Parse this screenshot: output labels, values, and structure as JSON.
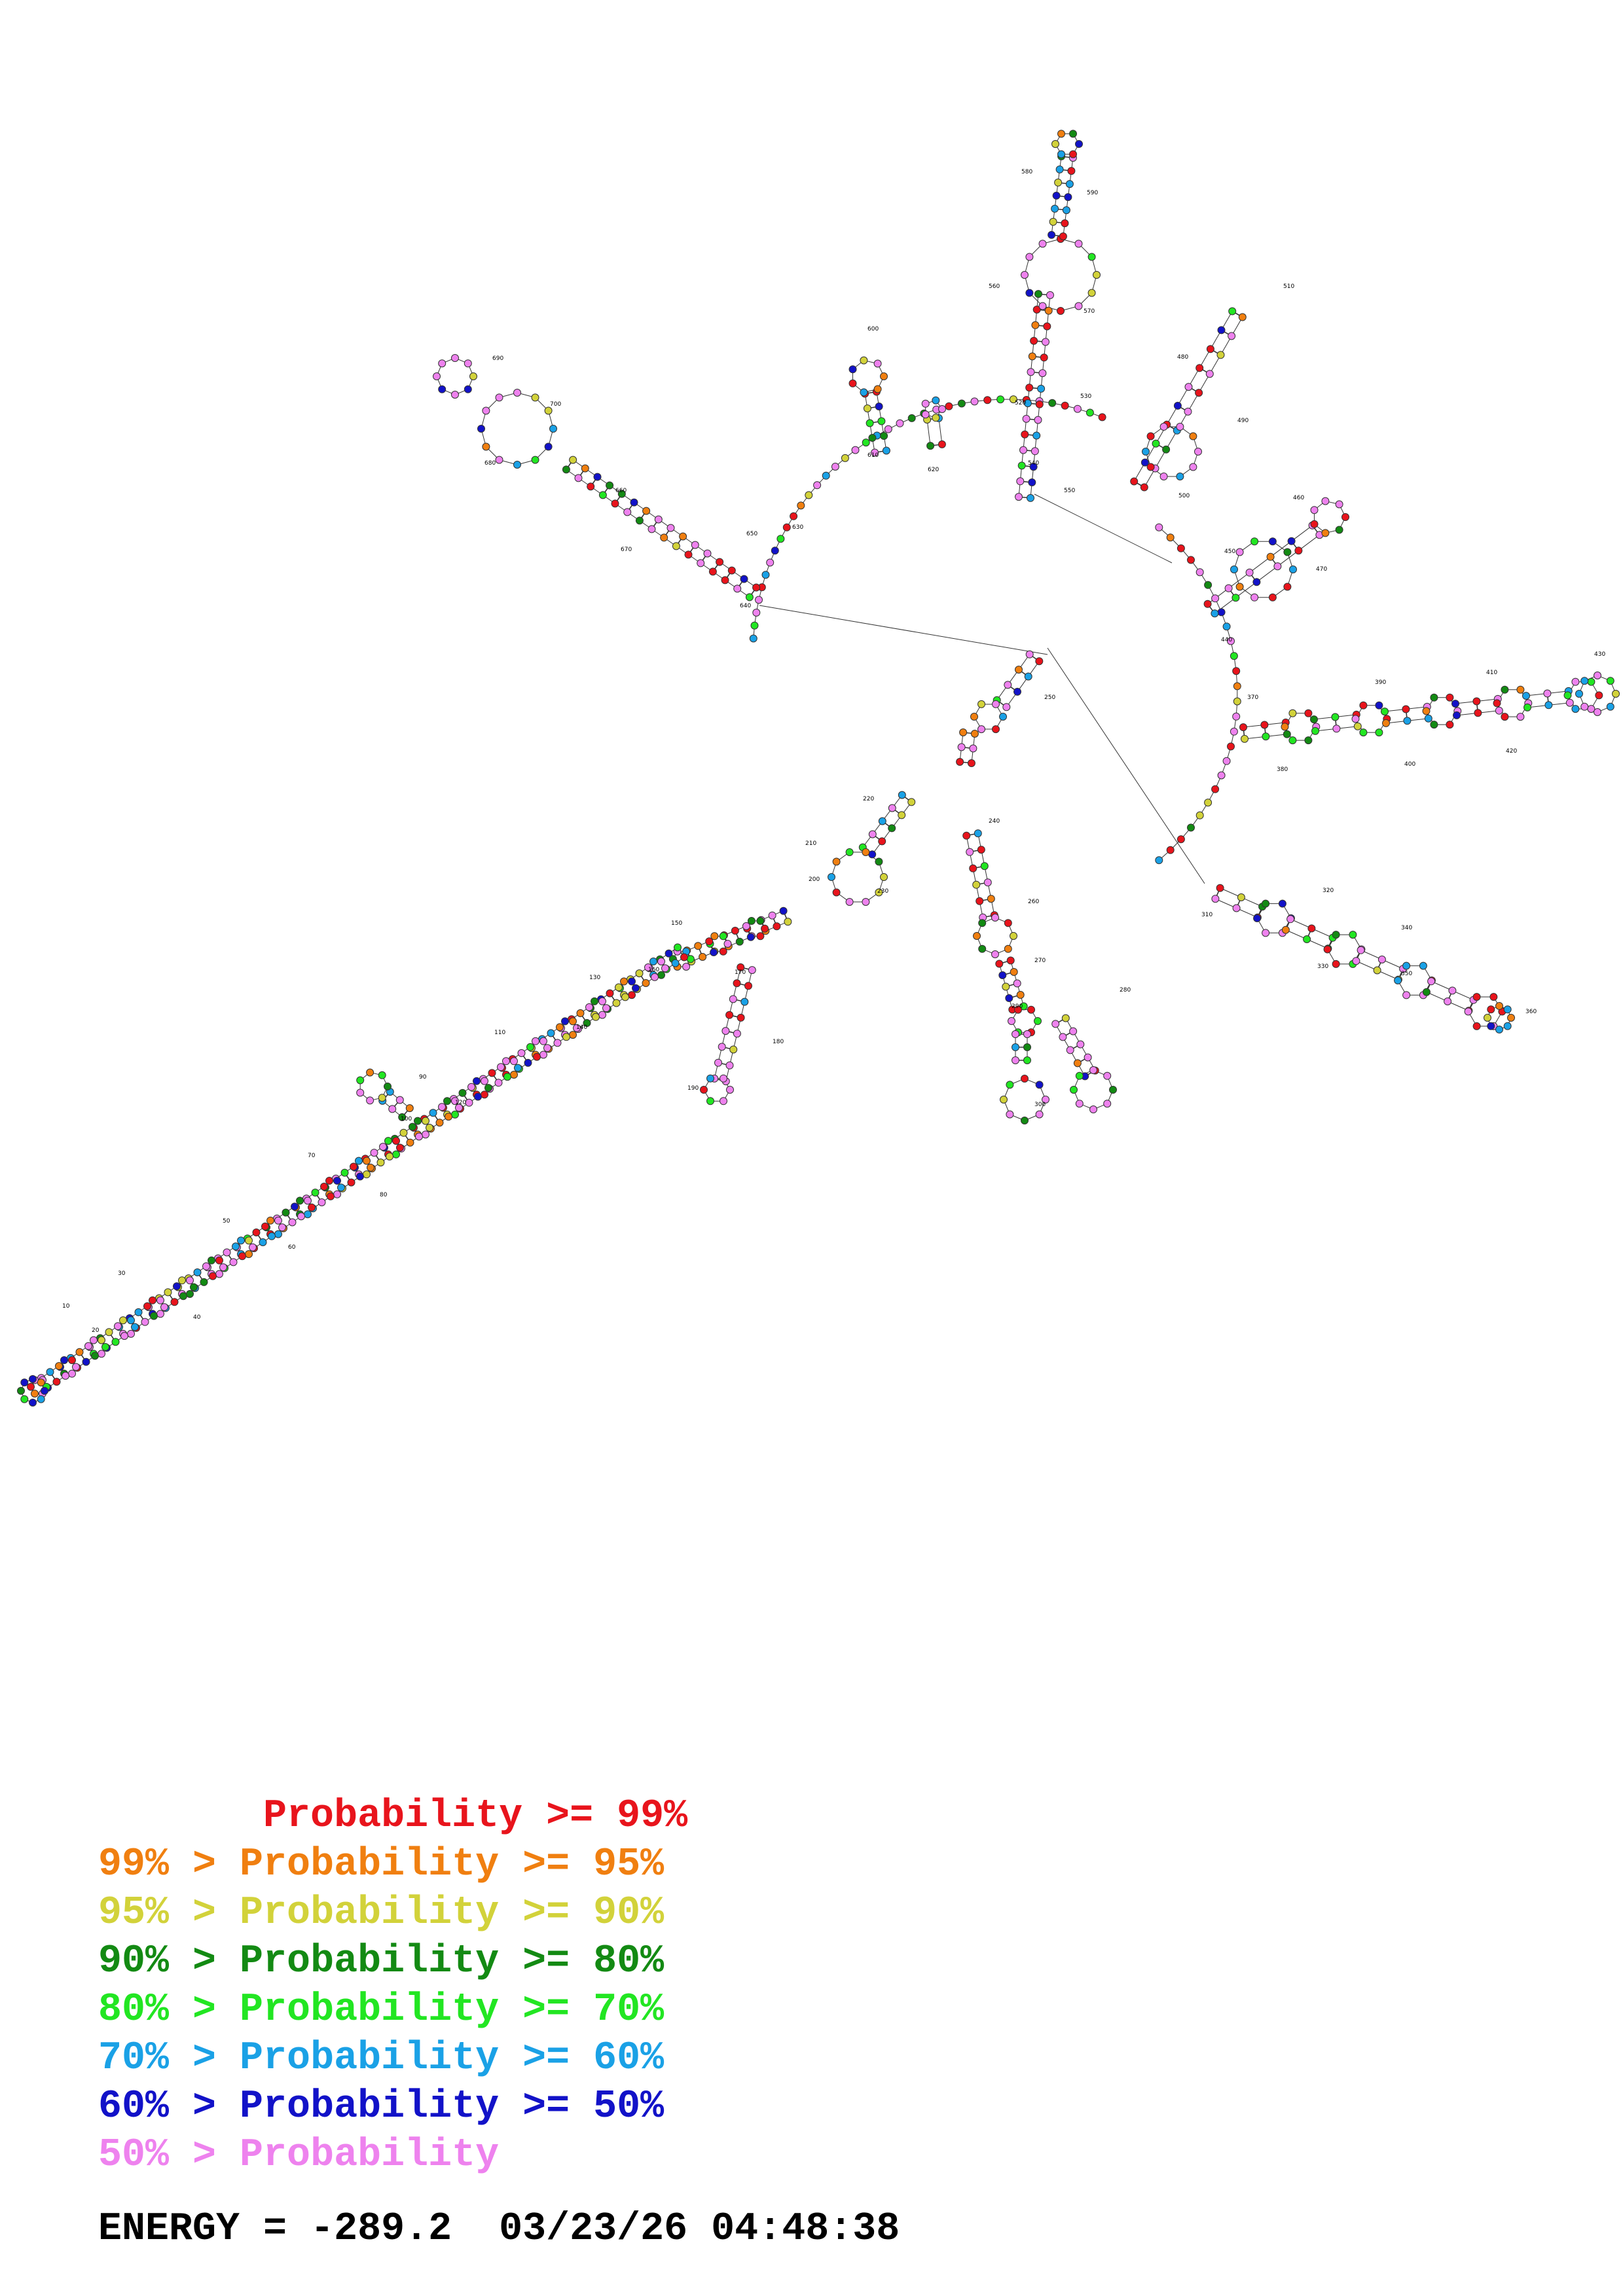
{
  "colors": {
    "p99": "#e8141c",
    "p95": "#f07f10",
    "p90": "#d2d23a",
    "p80": "#138a13",
    "p70": "#22e622",
    "p60": "#1aa1e6",
    "p50": "#1212c8",
    "plow": "#ee82ee",
    "text": "#000000",
    "backbone": "#555555"
  },
  "numbering": [
    "10",
    "20",
    "30",
    "40",
    "50",
    "60",
    "70",
    "80",
    "90",
    "100",
    "110",
    "120",
    "130",
    "140",
    "150",
    "160",
    "170",
    "180",
    "190",
    "200",
    "210",
    "220",
    "230",
    "240",
    "250",
    "260",
    "270",
    "280",
    "290",
    "300",
    "310",
    "320",
    "330",
    "340",
    "350",
    "360",
    "370",
    "380",
    "390",
    "400",
    "410",
    "420",
    "430",
    "440",
    "450",
    "460",
    "470",
    "480",
    "490",
    "500",
    "510",
    "520",
    "530",
    "540",
    "550",
    "560",
    "570",
    "580",
    "590",
    "600",
    "610",
    "620",
    "630",
    "640",
    "650",
    "660",
    "670",
    "680",
    "690",
    "700",
    "710",
    "720",
    "730",
    "740",
    "750",
    "760",
    "770",
    "780",
    "790"
  ],
  "legend": [
    {
      "prefix": "       ",
      "label": "Probability >= 99%",
      "color_key": "p99"
    },
    {
      "prefix": "99% > ",
      "label": "Probability >= 95%",
      "color_key": "p95"
    },
    {
      "prefix": "95% > ",
      "label": "Probability >= 90%",
      "color_key": "p90"
    },
    {
      "prefix": "90% > ",
      "label": "Probability >= 80%",
      "color_key": "p80"
    },
    {
      "prefix": "80% > ",
      "label": "Probability >= 70%",
      "color_key": "p70"
    },
    {
      "prefix": "70% > ",
      "label": "Probability >= 60%",
      "color_key": "p60"
    },
    {
      "prefix": "60% > ",
      "label": "Probability >= 50%",
      "color_key": "p50"
    },
    {
      "prefix": "50% > ",
      "label": "Probability",
      "color_key": "plow"
    }
  ],
  "energy": {
    "label": "ENERGY = ",
    "value": "-289.2",
    "timestamp": "03/23/26 04:48:38"
  }
}
